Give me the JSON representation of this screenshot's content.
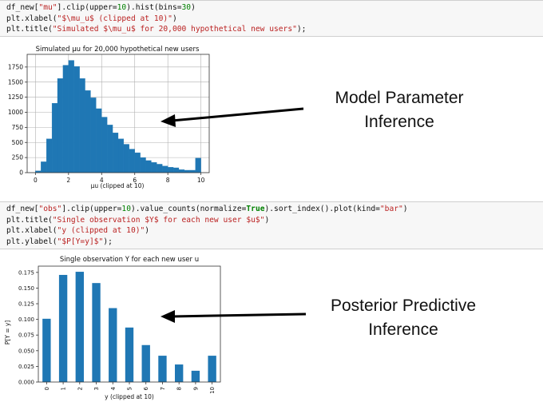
{
  "cell1": {
    "lines": [
      [
        {
          "t": "df_new[",
          "c": "plain"
        },
        {
          "t": "\"mu\"",
          "c": "s"
        },
        {
          "t": "].clip(upper=",
          "c": "plain"
        },
        {
          "t": "10",
          "c": "n"
        },
        {
          "t": ").hist(bins=",
          "c": "plain"
        },
        {
          "t": "30",
          "c": "n"
        },
        {
          "t": ")",
          "c": "plain"
        }
      ],
      [
        {
          "t": "plt.xlabel(",
          "c": "plain"
        },
        {
          "t": "\"$\\mu_u$ (clipped at 10)\"",
          "c": "s"
        },
        {
          "t": ")",
          "c": "plain"
        }
      ],
      [
        {
          "t": "plt.title(",
          "c": "plain"
        },
        {
          "t": "\"Simulated $\\mu_u$ for 20,000 hypothetical new users\"",
          "c": "s"
        },
        {
          "t": ");",
          "c": "plain"
        }
      ]
    ]
  },
  "cell2": {
    "lines": [
      [
        {
          "t": "df_new[",
          "c": "plain"
        },
        {
          "t": "\"obs\"",
          "c": "s"
        },
        {
          "t": "].clip(upper=",
          "c": "plain"
        },
        {
          "t": "10",
          "c": "n"
        },
        {
          "t": ").value_counts(normalize=",
          "c": "plain"
        },
        {
          "t": "True",
          "c": "k"
        },
        {
          "t": ").sort_index().plot(kind=",
          "c": "plain"
        },
        {
          "t": "\"bar\"",
          "c": "s"
        },
        {
          "t": ")",
          "c": "plain"
        }
      ],
      [
        {
          "t": "plt.title(",
          "c": "plain"
        },
        {
          "t": "\"Single observation $Y$ for each new user $u$\"",
          "c": "s"
        },
        {
          "t": ")",
          "c": "plain"
        }
      ],
      [
        {
          "t": "plt.xlabel(",
          "c": "plain"
        },
        {
          "t": "\"y (clipped at 10)\"",
          "c": "s"
        },
        {
          "t": ")",
          "c": "plain"
        }
      ],
      [
        {
          "t": "plt.ylabel(",
          "c": "plain"
        },
        {
          "t": "\"$P[Y=y]$\"",
          "c": "s"
        },
        {
          "t": ");",
          "c": "plain"
        }
      ]
    ]
  },
  "annotations": {
    "model_line1": "Model Parameter",
    "model_line2": "Inference",
    "posterior_line1": "Posterior Predictive",
    "posterior_line2": "Inference"
  },
  "colors": {
    "bar": "#1f77b4",
    "grid": "#b0b0b0",
    "arrow": "#000000"
  },
  "chart_data": [
    {
      "type": "bar",
      "title": "Simulated μu for 20,000 hypothetical new users",
      "xlabel": "μu (clipped at 10)",
      "ylabel": "",
      "grid": true,
      "xlim": [
        -0.5,
        10.5
      ],
      "ylim": [
        0,
        1960
      ],
      "xticks": [
        0,
        2,
        4,
        6,
        8,
        10
      ],
      "yticks": [
        0,
        250,
        500,
        750,
        1000,
        1250,
        1500,
        1750
      ],
      "bin_start": 0.0,
      "bin_width": 0.3333,
      "values": [
        30,
        180,
        560,
        1150,
        1560,
        1780,
        1860,
        1760,
        1560,
        1360,
        1240,
        1060,
        920,
        790,
        660,
        560,
        470,
        390,
        330,
        250,
        200,
        170,
        140,
        110,
        90,
        80,
        50,
        40,
        40,
        240
      ]
    },
    {
      "type": "bar",
      "title": "Single observation Y for each new user u",
      "xlabel": "y (clipped at 10)",
      "ylabel": "P[Y = y]",
      "grid": false,
      "ylim": [
        0,
        0.185
      ],
      "yticks": [
        "0.000",
        "0.025",
        "0.050",
        "0.075",
        "0.100",
        "0.125",
        "0.150",
        "0.175"
      ],
      "categories": [
        "0",
        "1",
        "2",
        "3",
        "4",
        "5",
        "6",
        "7",
        "8",
        "9",
        "10"
      ],
      "values": [
        0.101,
        0.171,
        0.176,
        0.158,
        0.118,
        0.087,
        0.059,
        0.042,
        0.028,
        0.018,
        0.042
      ]
    }
  ]
}
